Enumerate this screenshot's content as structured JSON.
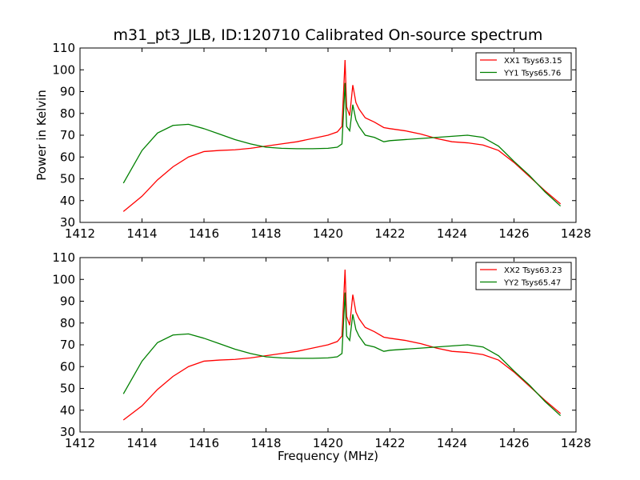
{
  "chart_data": {
    "type": "line",
    "title": "m31_pt3_JLB, ID:120710 Calibrated On-source spectrum",
    "xlabel": "Frequency (MHz)",
    "ylabel": "Power in Kelvin",
    "xlim": [
      1412,
      1428
    ],
    "xticks": [
      1412,
      1414,
      1416,
      1418,
      1420,
      1422,
      1424,
      1426,
      1428
    ],
    "ylim": [
      30,
      110
    ],
    "yticks": [
      30,
      40,
      50,
      60,
      70,
      80,
      90,
      100,
      110
    ],
    "grid": false,
    "legend_position": "top-right",
    "panels": [
      {
        "series": [
          {
            "name": "XX1 Tsys63.15",
            "color": "#ff0000",
            "x": [
              1413.4,
              1414.0,
              1414.5,
              1415.0,
              1415.5,
              1416.0,
              1416.5,
              1417.0,
              1417.5,
              1418.0,
              1418.5,
              1419.0,
              1419.5,
              1420.0,
              1420.3,
              1420.45,
              1420.55,
              1420.6,
              1420.7,
              1420.8,
              1420.9,
              1421.0,
              1421.2,
              1421.5,
              1421.8,
              1422.0,
              1422.5,
              1423.0,
              1423.5,
              1424.0,
              1424.5,
              1425.0,
              1425.5,
              1426.0,
              1426.5,
              1427.0,
              1427.5
            ],
            "y": [
              35,
              42,
              49.5,
              55.5,
              60,
              62.5,
              63,
              63.3,
              64,
              65,
              66,
              67,
              68.5,
              70,
              71.5,
              74,
              104.5,
              83,
              79,
              93,
              85,
              82,
              78,
              76,
              73.5,
              73,
              72,
              70.5,
              68.5,
              67,
              66.5,
              65.5,
              63,
              57.5,
              51,
              44.5,
              38.5
            ]
          },
          {
            "name": "YY1 Tsys65.76",
            "color": "#008000",
            "x": [
              1413.4,
              1414.0,
              1414.5,
              1415.0,
              1415.5,
              1416.0,
              1416.5,
              1417.0,
              1417.5,
              1418.0,
              1418.5,
              1419.0,
              1419.5,
              1420.0,
              1420.3,
              1420.45,
              1420.55,
              1420.6,
              1420.7,
              1420.8,
              1420.9,
              1421.0,
              1421.2,
              1421.5,
              1421.8,
              1422.0,
              1422.5,
              1423.0,
              1423.5,
              1424.0,
              1424.5,
              1425.0,
              1425.5,
              1426.0,
              1426.5,
              1427.0,
              1427.5
            ],
            "y": [
              48,
              63,
              71,
              74.5,
              75,
              73,
              70.5,
              68,
              66,
              64.5,
              64,
              63.8,
              63.8,
              64,
              64.5,
              66,
              94,
              74,
              72,
              84,
              77,
              74,
              70,
              69,
              67,
              67.5,
              68,
              68.5,
              69,
              69.5,
              70,
              69,
              65,
              58,
              51.5,
              44,
              37.5
            ]
          }
        ]
      },
      {
        "series": [
          {
            "name": "XX2 Tsys63.23",
            "color": "#ff0000",
            "x": [
              1413.4,
              1414.0,
              1414.5,
              1415.0,
              1415.5,
              1416.0,
              1416.5,
              1417.0,
              1417.5,
              1418.0,
              1418.5,
              1419.0,
              1419.5,
              1420.0,
              1420.3,
              1420.45,
              1420.55,
              1420.6,
              1420.7,
              1420.8,
              1420.9,
              1421.0,
              1421.2,
              1421.5,
              1421.8,
              1422.0,
              1422.5,
              1423.0,
              1423.5,
              1424.0,
              1424.5,
              1425.0,
              1425.5,
              1426.0,
              1426.5,
              1427.0,
              1427.5
            ],
            "y": [
              35.5,
              42,
              49.5,
              55.5,
              60,
              62.5,
              63,
              63.3,
              64,
              65,
              66,
              67,
              68.5,
              70,
              71.5,
              74,
              104.5,
              83,
              79,
              93,
              85,
              82,
              78,
              76,
              73.5,
              73,
              72,
              70.5,
              68.5,
              67,
              66.5,
              65.5,
              63,
              57.5,
              51,
              44.5,
              38.5
            ]
          },
          {
            "name": "YY2 Tsys65.47",
            "color": "#008000",
            "x": [
              1413.4,
              1414.0,
              1414.5,
              1415.0,
              1415.5,
              1416.0,
              1416.5,
              1417.0,
              1417.5,
              1418.0,
              1418.5,
              1419.0,
              1419.5,
              1420.0,
              1420.3,
              1420.45,
              1420.55,
              1420.6,
              1420.7,
              1420.8,
              1420.9,
              1421.0,
              1421.2,
              1421.5,
              1421.8,
              1422.0,
              1422.5,
              1423.0,
              1423.5,
              1424.0,
              1424.5,
              1425.0,
              1425.5,
              1426.0,
              1426.5,
              1427.0,
              1427.5
            ],
            "y": [
              47.5,
              62.5,
              71,
              74.5,
              75,
              73,
              70.5,
              68,
              66,
              64.5,
              64,
              63.8,
              63.8,
              64,
              64.5,
              66,
              94,
              74,
              72,
              84,
              77,
              74,
              70,
              69,
              67,
              67.5,
              68,
              68.5,
              69,
              69.5,
              70,
              69,
              65,
              58,
              51.5,
              44,
              37.5
            ]
          }
        ]
      }
    ]
  }
}
